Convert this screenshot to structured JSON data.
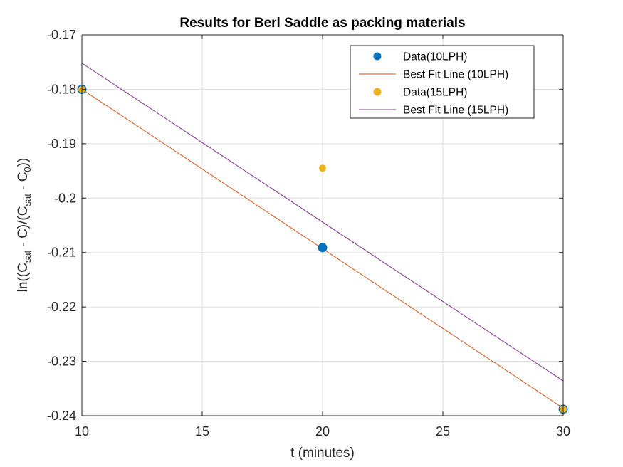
{
  "chart_data": {
    "type": "scatter",
    "title": "Results for Berl Saddle as packing materials",
    "xlabel": "t (minutes)",
    "ylabel": {
      "parts": [
        "ln((C",
        "sat",
        " - C)/(C",
        "sat",
        " - C",
        "0",
        "))"
      ]
    },
    "xlim": [
      10,
      30
    ],
    "ylim": [
      -0.24,
      -0.17
    ],
    "x_ticks": [
      10,
      15,
      20,
      25,
      30
    ],
    "y_ticks": [
      -0.24,
      -0.23,
      -0.22,
      -0.21,
      -0.2,
      -0.19,
      -0.18,
      -0.17
    ],
    "x_tick_labels": [
      "10",
      "15",
      "20",
      "25",
      "30"
    ],
    "y_tick_labels": [
      "-0.24",
      "-0.23",
      "-0.22",
      "-0.21",
      "-0.2",
      "-0.19",
      "-0.18",
      "-0.17"
    ],
    "grid": true,
    "legend_position": "top-right",
    "series": [
      {
        "name": "Data(10LPH)",
        "kind": "markers",
        "color": "#0072bd",
        "x": [
          10,
          20,
          30
        ],
        "y": [
          -0.18,
          -0.2091,
          -0.2388
        ]
      },
      {
        "name": "Best Fit Line (10LPH)",
        "kind": "line",
        "color": "#d95319",
        "x": [
          10,
          30
        ],
        "y": [
          -0.18,
          -0.2386
        ]
      },
      {
        "name": "Data(15LPH)",
        "kind": "markers",
        "color": "#edb120",
        "x": [
          10,
          20,
          30
        ],
        "y": [
          -0.18,
          -0.1945,
          -0.2388
        ]
      },
      {
        "name": "Best Fit Line (15LPH)",
        "kind": "line",
        "color": "#7e2f8e",
        "x": [
          10,
          30
        ],
        "y": [
          -0.1752,
          -0.2336
        ]
      }
    ]
  }
}
